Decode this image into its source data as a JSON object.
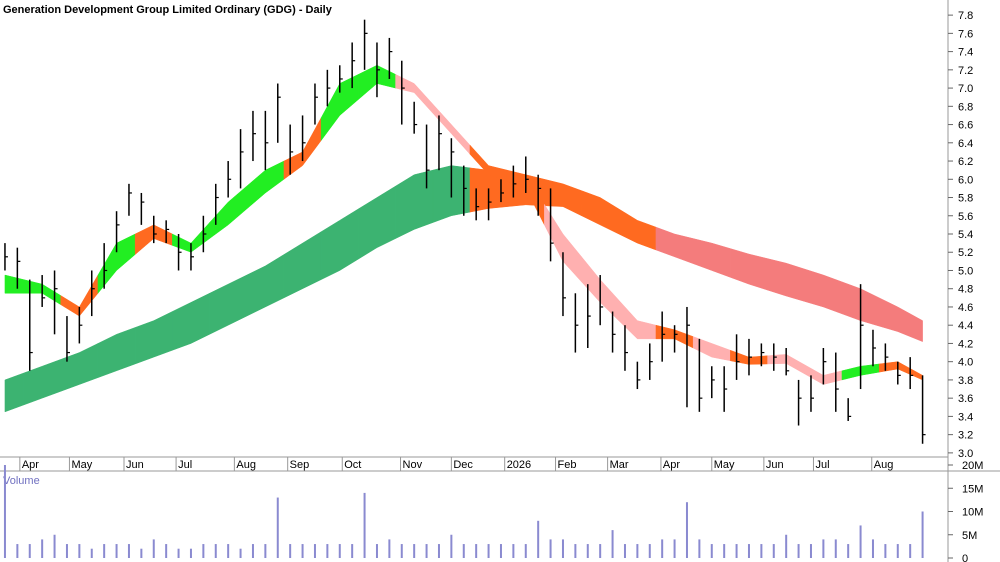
{
  "chart_data": {
    "type": "ohlc",
    "title": "Generation Development Group Limited Ordinary (GDG) - Daily",
    "xlim": [
      -0.4,
      76.05
    ],
    "xticks": [
      {
        "value": 1.2,
        "label": "Apr"
      },
      {
        "value": 5.2,
        "label": "May"
      },
      {
        "value": 9.6,
        "label": "Jun"
      },
      {
        "value": 13.8,
        "label": "Jul"
      },
      {
        "value": 18.5,
        "label": "Aug"
      },
      {
        "value": 22.8,
        "label": "Sep"
      },
      {
        "value": 27.2,
        "label": "Oct"
      },
      {
        "value": 31.9,
        "label": "Nov"
      },
      {
        "value": 36,
        "label": "Dec"
      },
      {
        "value": 40.3,
        "label": "2026"
      },
      {
        "value": 44.4,
        "label": "Feb"
      },
      {
        "value": 48.6,
        "label": "Mar"
      },
      {
        "value": 52.9,
        "label": "Apr"
      },
      {
        "value": 57,
        "label": "May"
      },
      {
        "value": 61.2,
        "label": "Jun"
      },
      {
        "value": 65.2,
        "label": "Jul"
      },
      {
        "value": 69.9,
        "label": "Aug"
      }
    ],
    "ylim": [
      2.9,
      7.9
    ],
    "yticks": [
      {
        "value": 3,
        "label": "3.0"
      },
      3.2,
      3.4,
      3.6,
      3.8,
      {
        "value": 4,
        "label": "4.0"
      },
      4.2,
      4.4,
      4.6,
      4.8,
      {
        "value": 5,
        "label": "5.0"
      },
      5.2,
      5.4,
      5.6,
      5.8,
      {
        "value": 6,
        "label": "6.0"
      },
      6.2,
      6.4,
      6.6,
      6.8,
      {
        "value": 7,
        "label": "7.0"
      },
      7.2,
      7.4,
      7.6,
      7.8
    ],
    "color": "#000000",
    "high": [
      5.3,
      5.25,
      4.9,
      4.95,
      5.0,
      4.5,
      4.6,
      5.0,
      5.3,
      5.65,
      5.95,
      5.85,
      5.6,
      5.55,
      5.4,
      5.3,
      5.6,
      5.95,
      6.2,
      6.55,
      6.75,
      6.75,
      7.05,
      6.6,
      6.7,
      7.05,
      7.2,
      7.25,
      7.5,
      7.75,
      7.5,
      7.55,
      7.3,
      6.85,
      6.6,
      6.7,
      6.45,
      6.15,
      5.9,
      5.9,
      6.0,
      6.15,
      6.25,
      6.05,
      5.9,
      5.2,
      4.75,
      4.85,
      4.95,
      4.55,
      4.4,
      4.0,
      4.2,
      4.55,
      4.4,
      4.6,
      4.25,
      3.95,
      3.95,
      4.3,
      4.25,
      4.2,
      4.2,
      4.15,
      3.8,
      3.85,
      4.15,
      4.1,
      3.6,
      4.85,
      4.35,
      4.2,
      4.0,
      4.05,
      3.85
    ],
    "low": [
      5.0,
      4.8,
      3.9,
      4.6,
      4.3,
      4.0,
      4.2,
      4.5,
      4.8,
      5.2,
      5.6,
      5.5,
      5.3,
      5.3,
      5.0,
      5.0,
      5.2,
      5.5,
      5.8,
      5.9,
      6.2,
      6.1,
      6.4,
      6.05,
      6.2,
      6.6,
      6.8,
      6.95,
      7.0,
      7.2,
      6.9,
      7.1,
      6.6,
      6.5,
      5.9,
      6.1,
      5.8,
      5.6,
      5.55,
      5.55,
      5.75,
      5.8,
      5.85,
      5.6,
      5.1,
      4.5,
      4.1,
      4.15,
      4.4,
      4.1,
      3.9,
      3.7,
      3.8,
      4.0,
      4.1,
      3.5,
      3.45,
      3.6,
      3.45,
      3.8,
      3.85,
      3.95,
      3.9,
      3.85,
      3.3,
      3.45,
      3.75,
      3.45,
      3.35,
      3.7,
      3.95,
      3.9,
      3.75,
      3.7,
      3.1
    ],
    "close": [
      5.15,
      5.1,
      4.1,
      4.7,
      4.8,
      4.1,
      4.4,
      4.8,
      5.0,
      5.5,
      5.85,
      5.75,
      5.4,
      5.45,
      5.2,
      5.15,
      5.4,
      5.8,
      6.0,
      6.3,
      6.5,
      6.4,
      6.9,
      6.3,
      6.4,
      6.9,
      7.0,
      7.1,
      7.3,
      7.6,
      7.2,
      7.4,
      7.0,
      6.6,
      6.1,
      6.5,
      6.3,
      5.9,
      5.7,
      5.75,
      5.85,
      5.95,
      6.0,
      5.9,
      5.3,
      4.7,
      4.4,
      4.5,
      4.6,
      4.3,
      4.1,
      3.8,
      4.0,
      4.3,
      4.3,
      4.4,
      3.6,
      3.8,
      3.7,
      4.0,
      4.05,
      4.1,
      4.05,
      3.9,
      3.6,
      3.6,
      4.0,
      3.7,
      3.4,
      4.4,
      4.15,
      4.05,
      3.85,
      3.85,
      3.2
    ],
    "bands": [
      {
        "x": [
          0,
          3,
          6,
          9,
          12,
          15,
          18,
          21,
          24,
          27,
          30,
          33,
          36,
          39,
          42,
          45,
          48,
          51,
          54,
          57,
          60,
          63,
          66,
          69,
          72,
          74
        ],
        "upper": [
          3.8,
          3.95,
          4.1,
          4.3,
          4.45,
          4.65,
          4.85,
          5.05,
          5.3,
          5.55,
          5.8,
          6.05,
          6.15,
          6.1,
          6.05,
          5.95,
          5.8,
          5.55,
          5.4,
          5.3,
          5.18,
          5.08,
          4.95,
          4.8,
          4.6,
          4.45
        ],
        "lower": [
          3.45,
          3.6,
          3.75,
          3.9,
          4.05,
          4.2,
          4.4,
          4.6,
          4.8,
          5.0,
          5.25,
          5.45,
          5.6,
          5.68,
          5.72,
          5.7,
          5.5,
          5.3,
          5.15,
          5.0,
          4.85,
          4.72,
          4.6,
          4.45,
          4.33,
          4.22
        ],
        "colors": [
          "#3cb371",
          "#3cb371",
          "#3cb371",
          "#3cb371",
          "#3cb371",
          "#3cb371",
          "#3cb371",
          "#3cb371",
          "#3cb371",
          "#3cb371",
          "#3cb371",
          "#3cb371",
          "#3cb371",
          "#ff6a20",
          "#ff6a20",
          "#ff6a20",
          "#ff6a20",
          "#ff6a20",
          "#f47c7c",
          "#f47c7c",
          "#f47c7c",
          "#f47c7c",
          "#f47c7c",
          "#f47c7c",
          "#f47c7c",
          "#f47c7c"
        ]
      },
      {
        "x": [
          0,
          3,
          6,
          9,
          12,
          15,
          18,
          21,
          24,
          27,
          30,
          33,
          36,
          39,
          42,
          45,
          48,
          51,
          54,
          57,
          60,
          63,
          66,
          69,
          72,
          74
        ],
        "upper": [
          4.95,
          4.85,
          4.6,
          5.3,
          5.5,
          5.3,
          5.75,
          6.1,
          6.3,
          7.05,
          7.25,
          7.05,
          6.6,
          6.15,
          6.05,
          5.4,
          4.9,
          4.45,
          4.35,
          4.2,
          4.05,
          4.08,
          3.85,
          3.95,
          4.0,
          3.85
        ],
        "lower": [
          4.75,
          4.75,
          4.5,
          5.0,
          5.35,
          5.2,
          5.5,
          5.85,
          6.15,
          6.7,
          7.05,
          6.95,
          6.5,
          6.05,
          5.9,
          5.1,
          4.65,
          4.25,
          4.25,
          4.05,
          3.97,
          3.98,
          3.75,
          3.85,
          3.92,
          3.8
        ],
        "colors": [
          "#22ee22",
          "#22ee22",
          "#ff6a20",
          "#22ee22",
          "#ff6a20",
          "#22ee22",
          "#22ee22",
          "#22ee22",
          "#ff6a20",
          "#22ee22",
          "#22ee22",
          "#ffb0b0",
          "#ffb0b0",
          "#ff6a20",
          "#ff6a20",
          "#ffb0b0",
          "#ffb0b0",
          "#ffb0b0",
          "#ff6a20",
          "#ffb0b0",
          "#ff6a20",
          "#ffb0b0",
          "#ffb0b0",
          "#22ee22",
          "#ff6a20",
          "#ff6a20"
        ]
      }
    ],
    "volume": {
      "title": "Volume",
      "color": "#8a8ad0",
      "ylim": [
        0,
        20000000
      ],
      "yticks": [
        {
          "value": 0,
          "label": "0"
        },
        {
          "value": 5000000,
          "label": "5M"
        },
        {
          "value": 10000000,
          "label": "10M"
        },
        {
          "value": 15000000,
          "label": "15M"
        },
        {
          "value": 20000000,
          "label": "20M"
        }
      ],
      "values": [
        20000000,
        3000000,
        3000000,
        4000000,
        5000000,
        3000000,
        3000000,
        2000000,
        3000000,
        3000000,
        3000000,
        2000000,
        4000000,
        3000000,
        2000000,
        2000000,
        3000000,
        3000000,
        3000000,
        2000000,
        3000000,
        3000000,
        13000000,
        3000000,
        3000000,
        3000000,
        3000000,
        3000000,
        3000000,
        14000000,
        3000000,
        4000000,
        3000000,
        3000000,
        3000000,
        3000000,
        5000000,
        3000000,
        3000000,
        3000000,
        3000000,
        3000000,
        3000000,
        8000000,
        4000000,
        4000000,
        3000000,
        3000000,
        3000000,
        6000000,
        3000000,
        3000000,
        3000000,
        4000000,
        4000000,
        12000000,
        4000000,
        3000000,
        3000000,
        3000000,
        3000000,
        3000000,
        3000000,
        5000000,
        3000000,
        3000000,
        4000000,
        4000000,
        3000000,
        7000000,
        4000000,
        3000000,
        3000000,
        3000000,
        10000000
      ]
    }
  }
}
